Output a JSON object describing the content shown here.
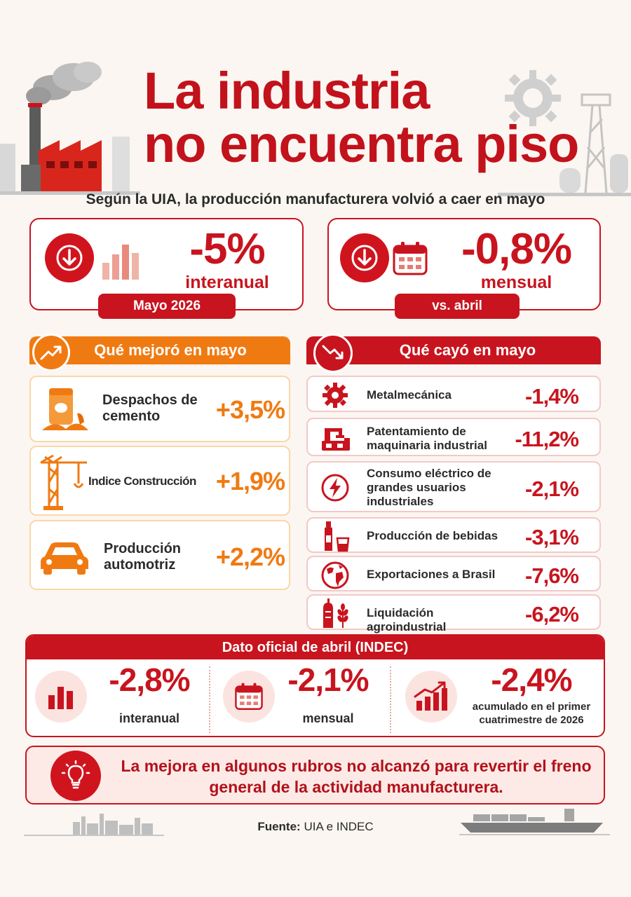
{
  "header": {
    "title_line1": "La industria",
    "title_line2": "no encuentra piso",
    "subtitle": "Según la UIA, la producción manufacturera volvió a caer en mayo"
  },
  "cards": [
    {
      "value": "-5%",
      "label": "interanual",
      "tag": "Mayo 2026",
      "icon": "bar-chart-icon"
    },
    {
      "value": "-0,8%",
      "label": "mensual",
      "tag": "vs. abril",
      "icon": "calendar-icon"
    }
  ],
  "improved": {
    "heading": "Qué mejoró en mayo",
    "items": [
      {
        "label": "Despachos de cemento",
        "value": "+3,5%",
        "icon": "cement-bag-icon"
      },
      {
        "label": "Indice Construcción",
        "value": "+1,9%",
        "icon": "crane-icon"
      },
      {
        "label": "Producción automotriz",
        "value": "+2,2%",
        "icon": "car-icon"
      }
    ]
  },
  "fell": {
    "heading": "Qué cayó en mayo",
    "items": [
      {
        "label": "Metalmecánica",
        "value": "-1,4%",
        "icon": "gear-icon"
      },
      {
        "label": "Patentamiento de maquinaria industrial",
        "value": "-11,2%",
        "icon": "machinery-icon"
      },
      {
        "label": "Consumo eléctrico de grandes usuarios industriales",
        "value": "-2,1%",
        "icon": "lightning-icon"
      },
      {
        "label": "Producción de bebidas",
        "value": "-3,1%",
        "icon": "bottle-icon"
      },
      {
        "label": "Exportaciones a Brasil",
        "value": "-7,6%",
        "icon": "globe-icon"
      },
      {
        "label": "Liquidación agroindustrial",
        "value": "-6,2%",
        "icon": "wheat-silo-icon"
      }
    ]
  },
  "indec": {
    "heading": "Dato oficial de abril (INDEC)",
    "stats": [
      {
        "value": "-2,8%",
        "label": "interanual"
      },
      {
        "value": "-2,1%",
        "label": "mensual"
      },
      {
        "value": "-2,4%",
        "label": "acumulado en el primer cuatrimestre de 2026"
      }
    ]
  },
  "note": "La mejora en algunos rubros no alcanzó para revertir el freno general de la actividad manufacturera.",
  "source": {
    "label": "Fuente:",
    "value": "UIA e INDEC"
  },
  "colors": {
    "red": "#c8141e",
    "orange": "#f07a12",
    "background": "#fbf6f1"
  }
}
